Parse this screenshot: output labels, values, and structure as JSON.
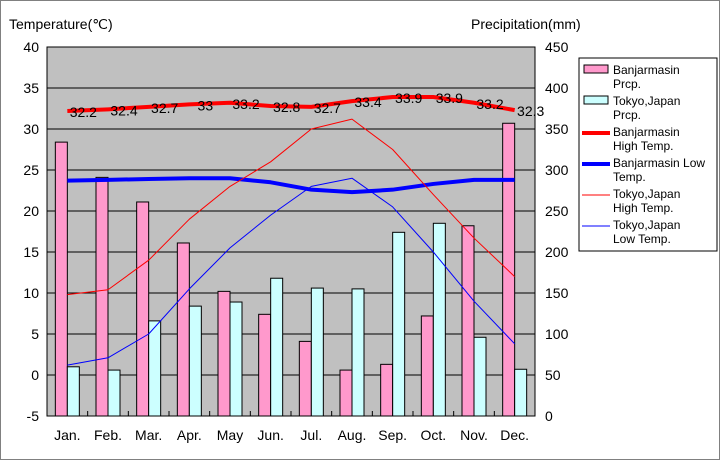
{
  "chart_data": {
    "type": "bar+line",
    "left_axis_label": "Temperature(℃)",
    "right_axis_label": "Precipitation(mm)",
    "ylim_left": [
      -5,
      40
    ],
    "ylim_right": [
      0,
      450
    ],
    "left_ticks": [
      "40",
      "35",
      "30",
      "25",
      "20",
      "15",
      "10",
      "5",
      "0",
      "-5"
    ],
    "right_ticks": [
      "450",
      "400",
      "350",
      "300",
      "250",
      "200",
      "150",
      "100",
      "50",
      "0"
    ],
    "categories": [
      "Jan.",
      "Feb.",
      "Mar.",
      "Apr.",
      "May",
      "Jun.",
      "Jul.",
      "Aug.",
      "Sep.",
      "Oct.",
      "Nov.",
      "Dec."
    ],
    "series": [
      {
        "name": "Banjarmasin Prcp.",
        "kind": "bar",
        "axis": "right",
        "color": "#ff99cc",
        "values": [
          334,
          291,
          261,
          211,
          152,
          124,
          91,
          56,
          63,
          122,
          232,
          357
        ]
      },
      {
        "name": "Tokyo,Japan Prcp.",
        "kind": "bar",
        "axis": "right",
        "color": "#ccffff",
        "values": [
          60,
          56,
          116,
          134,
          139,
          168,
          156,
          155,
          224,
          235,
          96,
          57
        ]
      },
      {
        "name": "Banjarmasin High Temp.",
        "kind": "line",
        "axis": "left",
        "color": "#ff0000",
        "width": 4,
        "values": [
          32.2,
          32.4,
          32.7,
          33,
          33.2,
          32.8,
          32.7,
          33.4,
          33.9,
          33.9,
          33.2,
          32.3
        ],
        "labels": [
          "32.2",
          "32.4",
          "32.7",
          "33",
          "33.2",
          "32.8",
          "32.7",
          "33.4",
          "33.9",
          "33.9",
          "33.2",
          "32.3"
        ]
      },
      {
        "name": "Banjarmasin Low Temp.",
        "kind": "line",
        "axis": "left",
        "color": "#0000ff",
        "width": 4,
        "values": [
          23.7,
          23.8,
          23.9,
          24.0,
          24.0,
          23.5,
          22.6,
          22.3,
          22.6,
          23.3,
          23.8,
          23.8
        ]
      },
      {
        "name": "Tokyo,Japan High Temp.",
        "kind": "line",
        "axis": "left",
        "color": "#ff0000",
        "width": 1,
        "values": [
          9.8,
          10.4,
          14.0,
          19.0,
          23.0,
          26.0,
          30.0,
          31.2,
          27.5,
          22.0,
          16.7,
          12.0
        ]
      },
      {
        "name": "Tokyo,Japan Low Temp.",
        "kind": "line",
        "axis": "left",
        "color": "#0000ff",
        "width": 1,
        "values": [
          1.2,
          2.1,
          5.0,
          10.5,
          15.5,
          19.5,
          23.0,
          24.0,
          20.5,
          15.0,
          9.0,
          3.8
        ]
      }
    ],
    "legend": [
      [
        "Banjarmasin",
        "Prcp."
      ],
      [
        "Tokyo,Japan",
        "Prcp."
      ],
      [
        "Banjarmasin",
        "High Temp."
      ],
      [
        "Banjarmasin Low",
        "Temp."
      ],
      [
        "Tokyo,Japan",
        "High Temp."
      ],
      [
        "Tokyo,Japan",
        "Low Temp."
      ]
    ],
    "legend_placement": "right",
    "grid": true
  }
}
